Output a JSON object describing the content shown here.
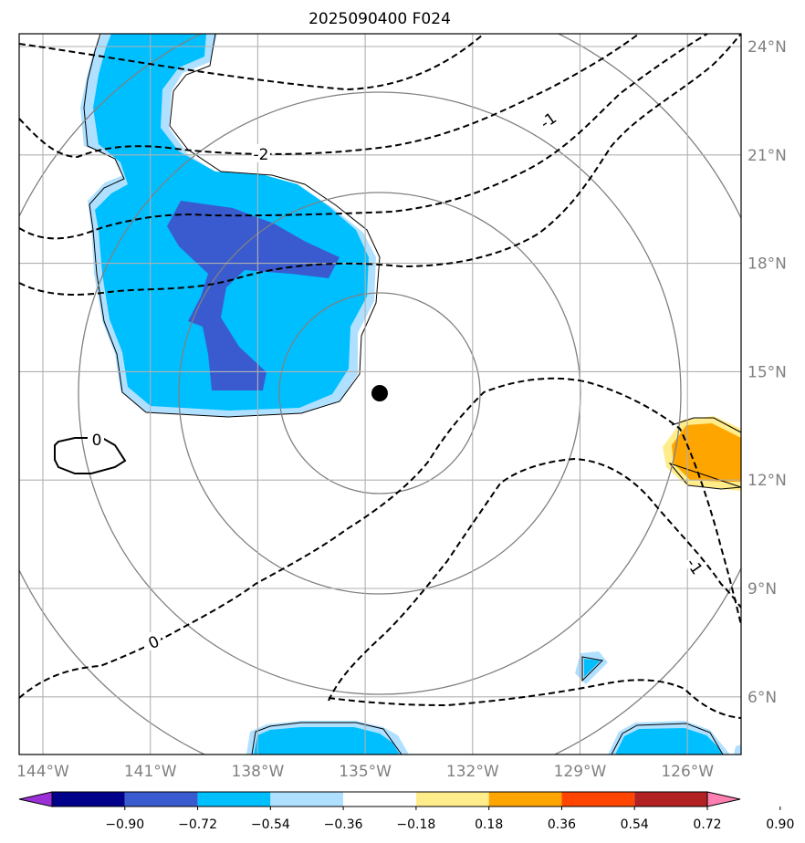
{
  "title": "2025090400 F024",
  "lon_ticks": [
    "144°W",
    "141°W",
    "138°W",
    "135°W",
    "132°W",
    "129°W",
    "126°W"
  ],
  "lat_ticks": [
    "24°N",
    "21°N",
    "18°N",
    "15°N",
    "12°N",
    "9°N",
    "6°N"
  ],
  "contour_labels": [
    "-1",
    "-2",
    "0",
    "0",
    "-1"
  ],
  "colorbar": {
    "ticks": [
      "−0.90",
      "−0.72",
      "−0.54",
      "−0.36",
      "−0.18",
      "0.18",
      "0.36",
      "0.54",
      "0.72",
      "0.90"
    ],
    "colors": [
      "#9b30d9",
      "#00008b",
      "#3a5bcf",
      "#00bfff",
      "#b0e0ff",
      "#ffffff",
      "#ffec8b",
      "#ffa500",
      "#ff4500",
      "#b22222",
      "#ff7fb0"
    ]
  },
  "storm_center": {
    "lon": -134.9,
    "lat": 14.4
  }
}
